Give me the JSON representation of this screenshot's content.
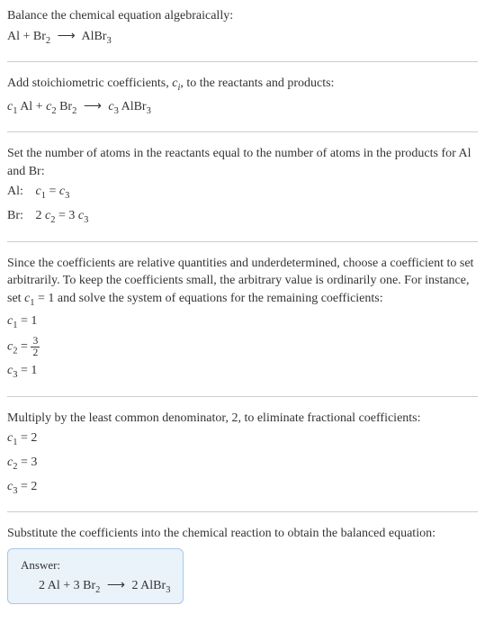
{
  "section1": {
    "line1": "Balance the chemical equation algebraically:",
    "eq_al": "Al + Br",
    "eq_sub1": "2",
    "eq_arrow": "⟶",
    "eq_albr": "AlBr",
    "eq_sub2": "3"
  },
  "section2": {
    "line1_a": "Add stoichiometric coefficients, ",
    "line1_ci": "c",
    "line1_ci_sub": "i",
    "line1_b": ", to the reactants and products:",
    "c1": "c",
    "c1_sub": "1",
    "al": " Al + ",
    "c2": "c",
    "c2_sub": "2",
    "br": " Br",
    "br_sub": "2",
    "arrow": "⟶",
    "c3": "c",
    "c3_sub": "3",
    "albr": " AlBr",
    "albr_sub": "3"
  },
  "section3": {
    "line1": "Set the number of atoms in the reactants equal to the number of atoms in the products for Al and Br:",
    "al_label": "Al: ",
    "al_c1": "c",
    "al_c1_sub": "1",
    "al_eq": " = ",
    "al_c3": "c",
    "al_c3_sub": "3",
    "br_label": "Br: ",
    "br_2": "2 ",
    "br_c2": "c",
    "br_c2_sub": "2",
    "br_eq": " = 3 ",
    "br_c3": "c",
    "br_c3_sub": "3"
  },
  "section4": {
    "line1_a": "Since the coefficients are relative quantities and underdetermined, choose a coefficient to set arbitrarily. To keep the coefficients small, the arbitrary value is ordinarily one. For instance, set ",
    "line1_c1": "c",
    "line1_c1_sub": "1",
    "line1_b": " = 1 and solve the system of equations for the remaining coefficients:",
    "c1": "c",
    "c1_sub": "1",
    "c1_val": " = 1",
    "c2": "c",
    "c2_sub": "2",
    "c2_eq": " = ",
    "c2_num": "3",
    "c2_den": "2",
    "c3": "c",
    "c3_sub": "3",
    "c3_val": " = 1"
  },
  "section5": {
    "line1": "Multiply by the least common denominator, 2, to eliminate fractional coefficients:",
    "c1": "c",
    "c1_sub": "1",
    "c1_val": " = 2",
    "c2": "c",
    "c2_sub": "2",
    "c2_val": " = 3",
    "c3": "c",
    "c3_sub": "3",
    "c3_val": " = 2"
  },
  "section6": {
    "line1": "Substitute the coefficients into the chemical reaction to obtain the balanced equation:",
    "answer_label": "Answer:",
    "eq_2al": "2 Al + 3 Br",
    "eq_br_sub": "2",
    "eq_arrow": "⟶",
    "eq_2albr": "2 AlBr",
    "eq_albr_sub": "3"
  }
}
